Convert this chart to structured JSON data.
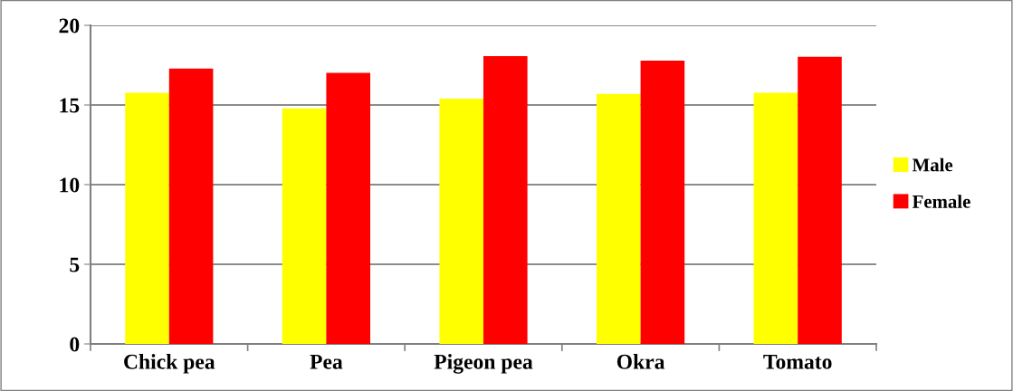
{
  "chart_data": {
    "type": "bar",
    "categories": [
      "Chick pea",
      "Pea",
      "Pigeon pea",
      "Okra",
      "Tomato"
    ],
    "series": [
      {
        "name": "Male",
        "color": "#ffff00",
        "values": [
          15.77,
          14.79,
          15.4,
          15.7,
          15.76
        ]
      },
      {
        "name": "Female",
        "color": "#ff0000",
        "values": [
          17.29,
          17.02,
          18.07,
          17.78,
          18.03
        ]
      }
    ],
    "ylim": [
      0,
      20
    ],
    "yticks": [
      0,
      5,
      10,
      15,
      20
    ],
    "grid": "y",
    "legend": "right"
  }
}
